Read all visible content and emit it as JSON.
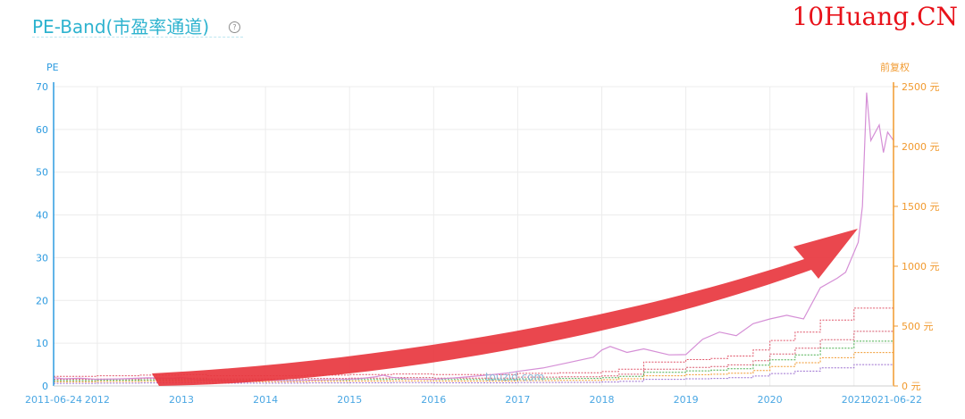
{
  "page": {
    "title": "PE-Band(市盈率通道)",
    "help_icon": "question-circle-icon",
    "watermark": "10Huang.CN",
    "center_brand": "touzid.com"
  },
  "chart_data": {
    "type": "line",
    "left_axis_label": "PE",
    "right_axis_label": "前复权",
    "left_ylim": [
      0,
      70
    ],
    "left_ticks": [
      "0",
      "10",
      "20",
      "30",
      "40",
      "50",
      "60",
      "70"
    ],
    "right_ylim": [
      0,
      2500
    ],
    "right_ticks": [
      "0 元",
      "500 元",
      "1000 元",
      "1500 元",
      "2000 元",
      "2500 元"
    ],
    "x_tick_labels": [
      "2011-06-24",
      "2012",
      "2013",
      "2014",
      "2015",
      "2016",
      "2017",
      "2018",
      "2019",
      "2020",
      "2021",
      "2021-06-22"
    ],
    "x_tick_values": [
      2011.48,
      2012.0,
      2013.0,
      2014.0,
      2015.0,
      2016.0,
      2017.0,
      2018.0,
      2019.0,
      2020.0,
      2021.0,
      2021.47
    ],
    "xlim": [
      2011.48,
      2021.47
    ],
    "grid": true,
    "colors": {
      "left_axis": "#2d9be0",
      "right_axis": "#f19a2f",
      "price": "#d58fd6",
      "arrow": "#e8373f"
    },
    "series": [
      {
        "color": "#e0566a",
        "values": [
          [
            2011.48,
            80
          ],
          [
            2012.0,
            85
          ],
          [
            2012.5,
            90
          ],
          [
            2013.0,
            95
          ],
          [
            2013.3,
            85
          ],
          [
            2014.0,
            85
          ],
          [
            2014.5,
            90
          ],
          [
            2015.0,
            95
          ],
          [
            2015.5,
            100
          ],
          [
            2016.0,
            95
          ],
          [
            2017.0,
            105
          ],
          [
            2017.5,
            110
          ],
          [
            2018.0,
            120
          ],
          [
            2018.2,
            140
          ],
          [
            2018.5,
            200
          ],
          [
            2019.0,
            220
          ],
          [
            2019.3,
            230
          ],
          [
            2019.5,
            250
          ],
          [
            2019.8,
            300
          ],
          [
            2020.0,
            380
          ],
          [
            2020.3,
            450
          ],
          [
            2020.6,
            550
          ],
          [
            2021.0,
            650
          ],
          [
            2021.47,
            750
          ]
        ]
      },
      {
        "color": "#d8586c",
        "values": [
          [
            2011.48,
            55
          ],
          [
            2012.0,
            58
          ],
          [
            2012.5,
            62
          ],
          [
            2013.0,
            66
          ],
          [
            2013.3,
            59
          ],
          [
            2014.0,
            59
          ],
          [
            2014.5,
            63
          ],
          [
            2015.0,
            66
          ],
          [
            2015.5,
            70
          ],
          [
            2016.0,
            66
          ],
          [
            2017.0,
            74
          ],
          [
            2017.5,
            77
          ],
          [
            2018.0,
            84
          ],
          [
            2018.2,
            98
          ],
          [
            2018.5,
            140
          ],
          [
            2019.0,
            155
          ],
          [
            2019.3,
            162
          ],
          [
            2019.5,
            176
          ],
          [
            2019.8,
            211
          ],
          [
            2020.0,
            267
          ],
          [
            2020.3,
            316
          ],
          [
            2020.6,
            386
          ],
          [
            2021.0,
            456
          ],
          [
            2021.47,
            527
          ]
        ]
      },
      {
        "color": "#4caf50",
        "values": [
          [
            2011.48,
            45
          ],
          [
            2012.0,
            48
          ],
          [
            2012.5,
            51
          ],
          [
            2013.0,
            54
          ],
          [
            2013.3,
            48
          ],
          [
            2014.0,
            48
          ],
          [
            2014.5,
            51
          ],
          [
            2015.0,
            54
          ],
          [
            2015.5,
            57
          ],
          [
            2016.0,
            54
          ],
          [
            2017.0,
            60
          ],
          [
            2017.5,
            63
          ],
          [
            2018.0,
            69
          ],
          [
            2018.2,
            80
          ],
          [
            2018.5,
            114
          ],
          [
            2019.0,
            126
          ],
          [
            2019.3,
            132
          ],
          [
            2019.5,
            144
          ],
          [
            2019.8,
            173
          ],
          [
            2020.0,
            219
          ],
          [
            2020.3,
            260
          ],
          [
            2020.6,
            316
          ],
          [
            2021.0,
            374
          ],
          [
            2021.47,
            432
          ]
        ]
      },
      {
        "color": "#f19a2f",
        "values": [
          [
            2011.48,
            34
          ],
          [
            2012.0,
            37
          ],
          [
            2012.5,
            39
          ],
          [
            2013.0,
            41
          ],
          [
            2013.3,
            36
          ],
          [
            2014.0,
            36
          ],
          [
            2014.5,
            39
          ],
          [
            2015.0,
            41
          ],
          [
            2015.5,
            43
          ],
          [
            2016.0,
            41
          ],
          [
            2017.0,
            45
          ],
          [
            2017.5,
            47
          ],
          [
            2018.0,
            52
          ],
          [
            2018.2,
            60
          ],
          [
            2018.5,
            85
          ],
          [
            2019.0,
            94
          ],
          [
            2019.3,
            98
          ],
          [
            2019.5,
            107
          ],
          [
            2019.8,
            129
          ],
          [
            2020.0,
            163
          ],
          [
            2020.3,
            194
          ],
          [
            2020.6,
            236
          ],
          [
            2021.0,
            279
          ],
          [
            2021.47,
            322
          ]
        ]
      },
      {
        "color": "#9c6fcf",
        "values": [
          [
            2011.48,
            22
          ],
          [
            2012.0,
            23
          ],
          [
            2012.5,
            25
          ],
          [
            2013.0,
            26
          ],
          [
            2013.3,
            23
          ],
          [
            2014.0,
            23
          ],
          [
            2014.5,
            25
          ],
          [
            2015.0,
            26
          ],
          [
            2015.5,
            28
          ],
          [
            2016.0,
            26
          ],
          [
            2017.0,
            29
          ],
          [
            2017.5,
            30
          ],
          [
            2018.0,
            33
          ],
          [
            2018.2,
            38
          ],
          [
            2018.5,
            55
          ],
          [
            2019.0,
            60
          ],
          [
            2019.3,
            63
          ],
          [
            2019.5,
            69
          ],
          [
            2019.8,
            83
          ],
          [
            2020.0,
            104
          ],
          [
            2020.3,
            124
          ],
          [
            2020.6,
            151
          ],
          [
            2021.0,
            178
          ],
          [
            2021.47,
            205
          ]
        ]
      },
      {
        "color": "#d58fd6",
        "values": [
          [
            2011.48,
            70
          ],
          [
            2011.6,
            60
          ],
          [
            2011.8,
            65
          ],
          [
            2012.0,
            55
          ],
          [
            2012.3,
            60
          ],
          [
            2012.6,
            68
          ],
          [
            2012.9,
            64
          ],
          [
            2013.0,
            72
          ],
          [
            2013.2,
            50
          ],
          [
            2013.5,
            45
          ],
          [
            2013.8,
            40
          ],
          [
            2014.0,
            46
          ],
          [
            2014.3,
            44
          ],
          [
            2014.6,
            50
          ],
          [
            2014.9,
            54
          ],
          [
            2015.1,
            60
          ],
          [
            2015.3,
            75
          ],
          [
            2015.4,
            90
          ],
          [
            2015.5,
            72
          ],
          [
            2015.7,
            58
          ],
          [
            2016.0,
            55
          ],
          [
            2016.3,
            70
          ],
          [
            2016.6,
            88
          ],
          [
            2016.9,
            110
          ],
          [
            2017.0,
            122
          ],
          [
            2017.3,
            150
          ],
          [
            2017.6,
            195
          ],
          [
            2017.9,
            240
          ],
          [
            2018.0,
            300
          ],
          [
            2018.1,
            330
          ],
          [
            2018.3,
            280
          ],
          [
            2018.5,
            310
          ],
          [
            2018.8,
            260
          ],
          [
            2019.0,
            262
          ],
          [
            2019.2,
            390
          ],
          [
            2019.4,
            450
          ],
          [
            2019.6,
            420
          ],
          [
            2019.8,
            520
          ],
          [
            2020.0,
            560
          ],
          [
            2020.2,
            590
          ],
          [
            2020.4,
            560
          ],
          [
            2020.6,
            820
          ],
          [
            2020.8,
            900
          ],
          [
            2020.9,
            950
          ],
          [
            2021.05,
            1200
          ],
          [
            2021.1,
            1500
          ],
          [
            2021.15,
            2450
          ],
          [
            2021.2,
            2050
          ],
          [
            2021.3,
            2180
          ],
          [
            2021.35,
            1950
          ],
          [
            2021.4,
            2120
          ],
          [
            2021.47,
            2050
          ]
        ]
      }
    ],
    "annotations": [
      "touzid.com"
    ]
  }
}
